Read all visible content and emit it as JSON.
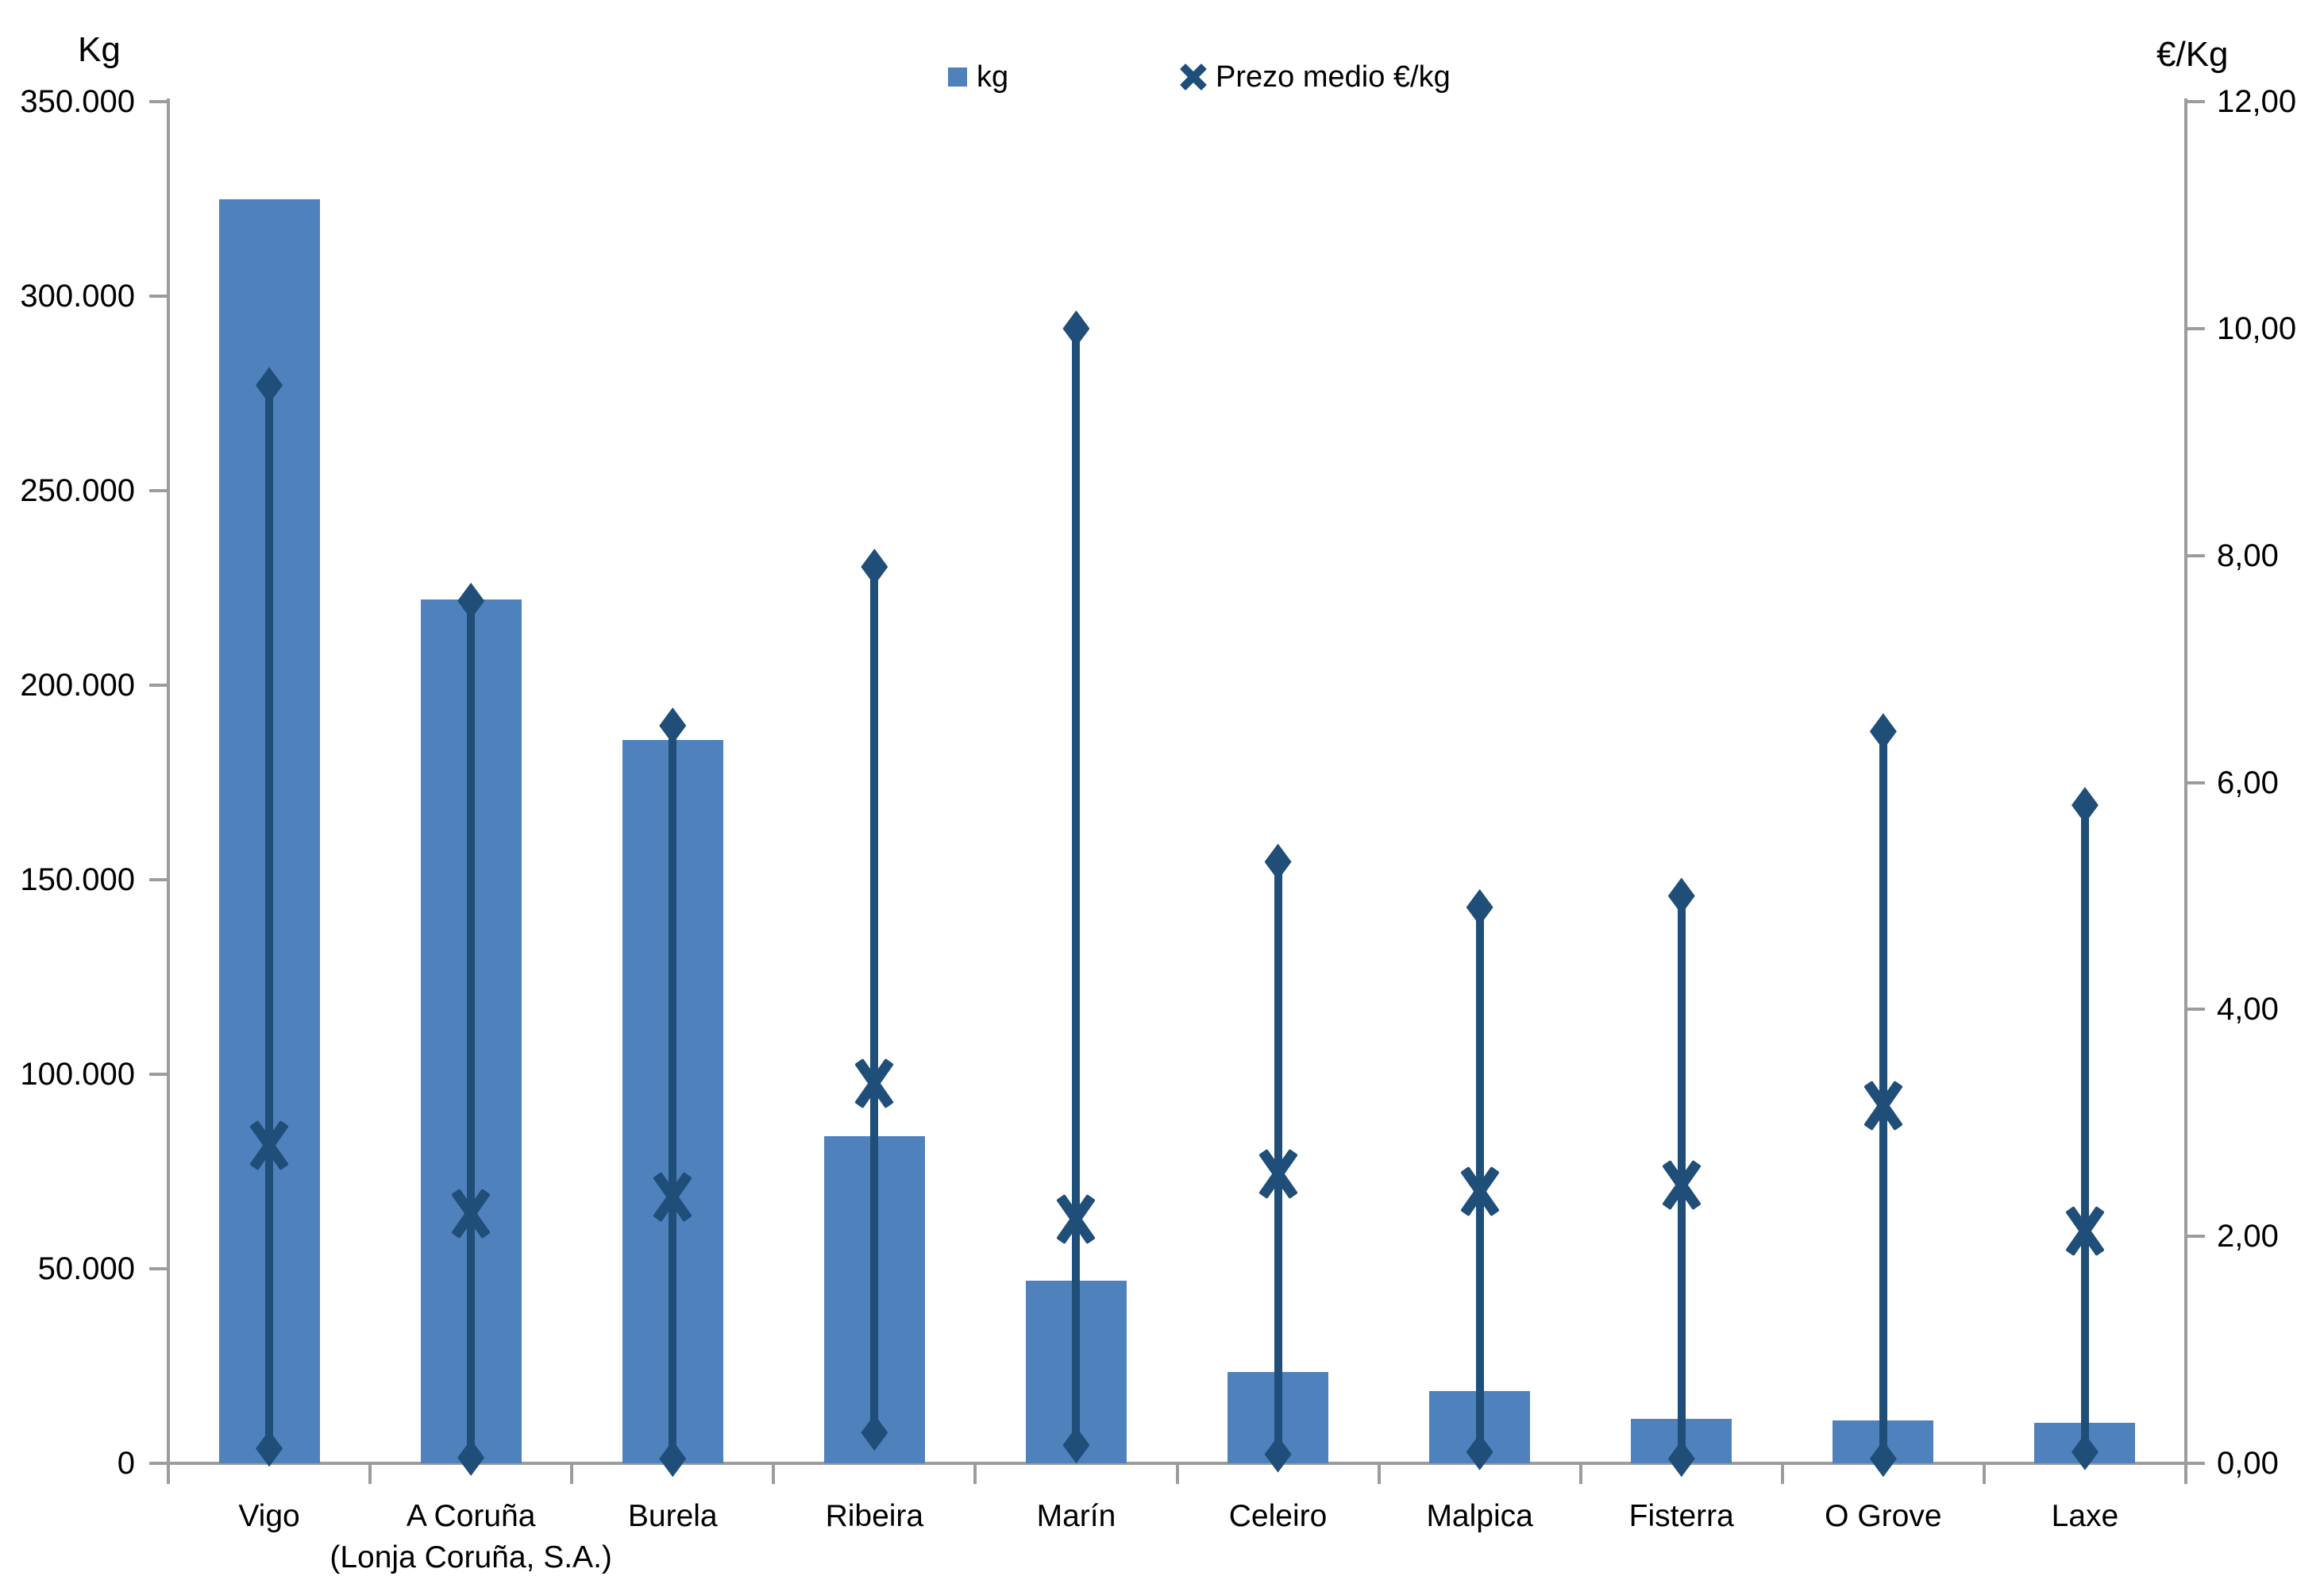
{
  "chart_data": {
    "type": "bar",
    "subtype": "combo: bars (kg, left axis) + min/avg/max price range lines with diamond endpoints and X average markers (right axis)",
    "title": "",
    "grid": false,
    "legend_position": "top-center",
    "axis_color": "#9C9C9C",
    "categories": [
      {
        "lines": [
          "Vigo"
        ]
      },
      {
        "lines": [
          "A Coruña",
          "(Lonja Coruña, S.A.)"
        ]
      },
      {
        "lines": [
          "Burela"
        ]
      },
      {
        "lines": [
          "Ribeira"
        ]
      },
      {
        "lines": [
          "Marín"
        ]
      },
      {
        "lines": [
          "Celeiro"
        ]
      },
      {
        "lines": [
          "Malpica"
        ]
      },
      {
        "lines": [
          "Fisterra"
        ]
      },
      {
        "lines": [
          "O Grove"
        ]
      },
      {
        "lines": [
          "Laxe"
        ]
      }
    ],
    "series": [
      {
        "name": "kg",
        "type": "bar",
        "axis": "left",
        "color": "#4F81BD",
        "values": [
          325000,
          222000,
          186000,
          84000,
          47000,
          23500,
          18500,
          11500,
          11000,
          10500
        ]
      },
      {
        "name": "Prezo medio €/kg",
        "type": "x-marker",
        "axis": "right",
        "color": "#1F4E79",
        "values": [
          2.8,
          2.2,
          2.35,
          3.35,
          2.15,
          2.55,
          2.4,
          2.45,
          3.15,
          2.05
        ]
      },
      {
        "name": "price-max-diamond",
        "type": "range-high",
        "axis": "right",
        "color": "#1F4E79",
        "values": [
          9.5,
          7.6,
          6.5,
          7.9,
          10.0,
          5.3,
          4.9,
          5.0,
          6.45,
          5.8
        ]
      },
      {
        "name": "price-min-diamond",
        "type": "range-low",
        "axis": "right",
        "color": "#1F4E79",
        "values": [
          0.13,
          0.05,
          0.04,
          0.27,
          0.16,
          0.08,
          0.1,
          0.04,
          0.04,
          0.1
        ]
      }
    ],
    "left_axis": {
      "title": "Kg",
      "min": 0,
      "max": 350000,
      "tick_labels": [
        "350.000",
        "300.000",
        "250.000",
        "200.000",
        "150.000",
        "100.000",
        "50.000",
        "0"
      ]
    },
    "right_axis": {
      "title": "€/Kg",
      "min": 0,
      "max": 12,
      "tick_labels": [
        "12,00",
        "10,00",
        "8,00",
        "6,00",
        "4,00",
        "2,00",
        "0,00"
      ]
    },
    "legend": [
      {
        "label": "kg",
        "marker": "square",
        "color": "#4F81BD"
      },
      {
        "label": "Prezo medio €/kg",
        "marker": "x",
        "color": "#1F4E79"
      }
    ]
  }
}
